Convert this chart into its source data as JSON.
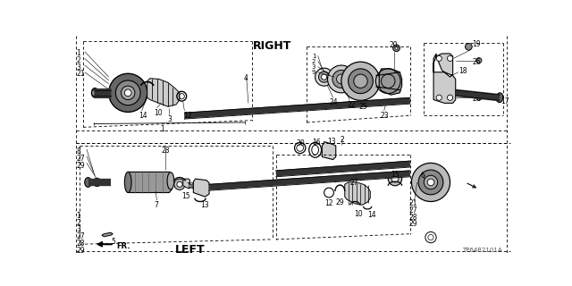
{
  "bg_color": "#ffffff",
  "diagram_code": "TP64B2101A",
  "right_label": "RIGHT",
  "left_label": "LEFT",
  "fr_label": "FR.",
  "shaft_color": "#222222",
  "line_color": "#111111",
  "text_color": "#000000",
  "gray_fill": "#888888",
  "dark_fill": "#333333",
  "mid_fill": "#666666"
}
